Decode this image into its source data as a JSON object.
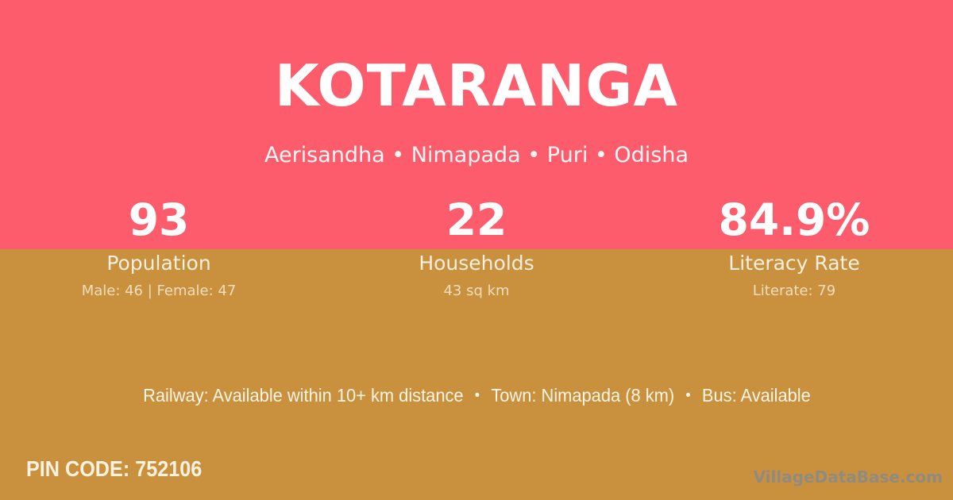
{
  "colors": {
    "top_band_bg": "#fd5c6d",
    "bottom_bg": "#c9913e",
    "primary_text": "#ffffff",
    "label_text": "#f8eedd",
    "watermark_text": "#8b8b87"
  },
  "header": {
    "title": "KOTARANGA",
    "subtitle": "Aerisandha • Nimapada • Puri • Odisha"
  },
  "stats": [
    {
      "value": "93",
      "label": "Population",
      "detail": "Male: 46 | Female: 47"
    },
    {
      "value": "22",
      "label": "Households",
      "detail": "43 sq km"
    },
    {
      "value": "84.9%",
      "label": "Literacy Rate",
      "detail": "Literate: 79"
    }
  ],
  "amenities": {
    "separator": "•",
    "segments": [
      "Railway: Available within 10+ km distance",
      "Town: Nimapada (8 km)",
      "Bus: Available"
    ]
  },
  "footer": {
    "pin_code": "PIN CODE: 752106",
    "watermark": "VillageDataBase.com"
  }
}
